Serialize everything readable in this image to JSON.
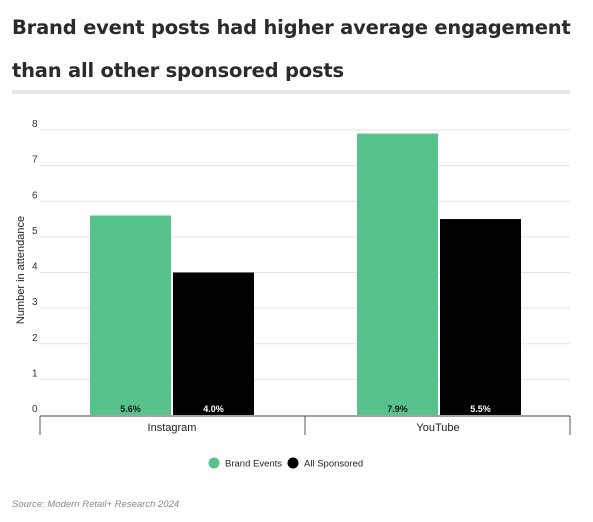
{
  "chart_data": {
    "type": "bar",
    "title": "Brand event posts had higher average engagement than all other sponsored posts",
    "ylabel": "Number in attendance",
    "xlabel": "",
    "ylim": [
      0,
      8
    ],
    "yticks": [
      0,
      1,
      2,
      3,
      4,
      5,
      6,
      7,
      8
    ],
    "grid": true,
    "legend_position": "bottom",
    "categories": [
      "Instagram",
      "YouTube"
    ],
    "series": [
      {
        "name": "Brand Events",
        "values": [
          5.6,
          7.9
        ],
        "labels": [
          "5.6%",
          "7.9%"
        ],
        "color": "#57c28b"
      },
      {
        "name": "All Sponsored",
        "values": [
          4.0,
          5.5
        ],
        "labels": [
          "4.0%",
          "5.5%"
        ],
        "color": "#000000"
      }
    ],
    "source": "Source: Modern Retail+ Research 2024"
  }
}
